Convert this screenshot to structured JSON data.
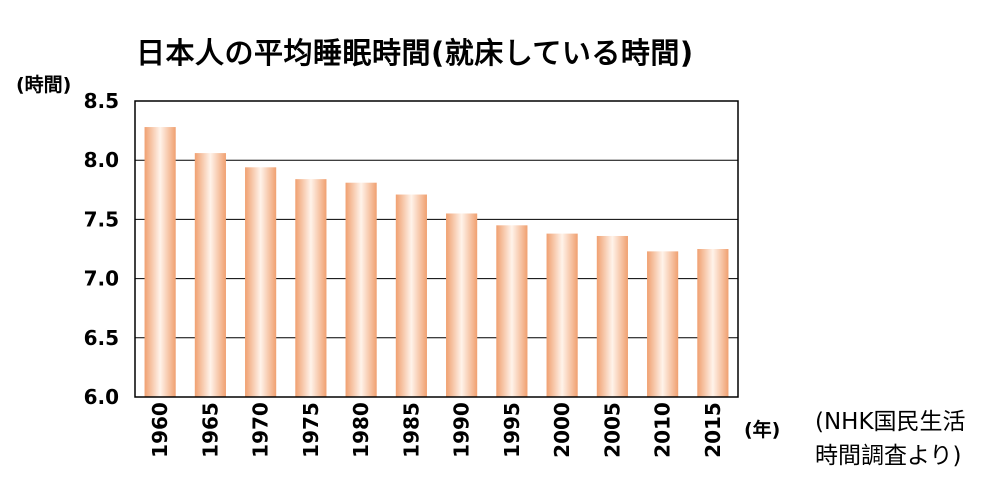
{
  "title": "日本人の平均睡眠時間(就床している時間)",
  "y_unit_label": "(時間)",
  "x_unit_label": "(年)",
  "source_line1": "(NHK国民生活",
  "source_line2": "時間調査より)",
  "colors": {
    "bar_edge": "#f0a070",
    "bar_center": "#fff3ea",
    "grid": "#000000",
    "axis": "#000000"
  },
  "chart_data": {
    "type": "bar",
    "title": "日本人の平均睡眠時間(就床している時間)",
    "ylabel": "(時間)",
    "xlabel": "(年)",
    "categories": [
      "1960",
      "1965",
      "1970",
      "1975",
      "1980",
      "1985",
      "1990",
      "1995",
      "2000",
      "2005",
      "2010",
      "2015"
    ],
    "values": [
      8.28,
      8.06,
      7.94,
      7.84,
      7.81,
      7.71,
      7.55,
      7.45,
      7.38,
      7.36,
      7.23,
      7.25
    ],
    "ylim": [
      6.0,
      8.5
    ],
    "yticks": [
      "6.0",
      "6.5",
      "7.0",
      "7.5",
      "8.0",
      "8.5"
    ],
    "grid": true,
    "legend": "none"
  }
}
